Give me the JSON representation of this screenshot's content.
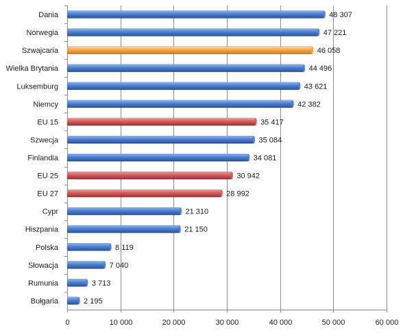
{
  "chart_data": {
    "type": "bar",
    "orientation": "horizontal",
    "categories": [
      "Dania",
      "Norwegia",
      "Szwajcaria",
      "Wielka Brytania",
      "Luksemburg",
      "Niemcy",
      "EU 15",
      "Szwecja",
      "Finlandia",
      "EU 25",
      "EU 27",
      "Cypr",
      "Hiszpania",
      "Polska",
      "Słowacja",
      "Rumunia",
      "Bułgaria"
    ],
    "values": [
      48307,
      47221,
      46058,
      44496,
      43621,
      42382,
      35417,
      35084,
      34081,
      30942,
      28992,
      21310,
      21150,
      8119,
      7040,
      3713,
      2195
    ],
    "value_labels": [
      "48 307",
      "47 221",
      "46 058",
      "44 496",
      "43 621",
      "42 382",
      "35 417",
      "35 084",
      "34 081",
      "30 942",
      "28 992",
      "21 310",
      "21 150",
      "8 119",
      "7 040",
      "3 713",
      "2 195"
    ],
    "bar_groups": [
      "country",
      "country",
      "highlight",
      "country",
      "country",
      "country",
      "eu",
      "country",
      "country",
      "eu",
      "eu",
      "country",
      "country",
      "country",
      "country",
      "country",
      "country"
    ],
    "colors": {
      "country": "#4a7fd0",
      "highlight": "#f5a84a",
      "eu": "#d25a5a"
    },
    "xlim": [
      0,
      60000
    ],
    "xticks": [
      0,
      10000,
      20000,
      30000,
      40000,
      50000,
      60000
    ],
    "xtick_labels": [
      "0",
      "10 000",
      "20 000",
      "30 000",
      "40 000",
      "50 000",
      "60 000"
    ],
    "grid": "vertical",
    "title": "",
    "xlabel": "",
    "ylabel": "",
    "legend": "none"
  }
}
